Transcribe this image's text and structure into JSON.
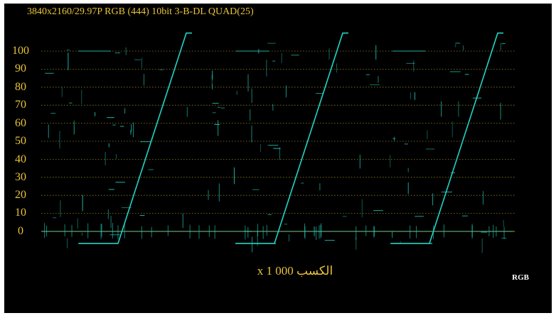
{
  "header": {
    "format": "3840x2160/29.97P RGB (444) 10bit 3-B-DL QUAD(25)"
  },
  "scale": {
    "ticks": [
      {
        "value": 100,
        "label": "100"
      },
      {
        "value": 90,
        "label": "90"
      },
      {
        "value": 80,
        "label": "80"
      },
      {
        "value": 70,
        "label": "70"
      },
      {
        "value": 60,
        "label": "60"
      },
      {
        "value": 50,
        "label": "50"
      },
      {
        "value": 40,
        "label": "40"
      },
      {
        "value": 30,
        "label": "30"
      },
      {
        "value": 20,
        "label": "20"
      },
      {
        "value": 10,
        "label": "10"
      },
      {
        "value": 0,
        "label": "0"
      }
    ]
  },
  "footer": {
    "gain": "الكسب x 1 000",
    "mode": "RGB"
  },
  "colors": {
    "background": "#000000",
    "label": "#e8c438",
    "graticule": "#b0a02a",
    "trace": "#22d3c5"
  }
}
